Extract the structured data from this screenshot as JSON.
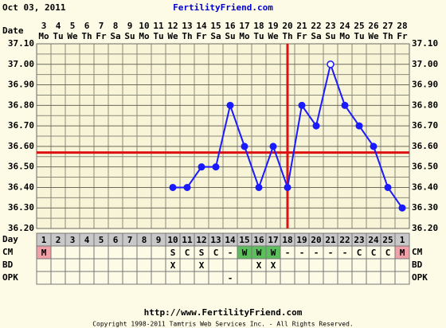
{
  "header": {
    "date": "Oct 03, 2011",
    "site": "FertilityFriend.com"
  },
  "chart_data": {
    "type": "line",
    "x_label": "Date",
    "dates": [
      "3",
      "4",
      "5",
      "6",
      "7",
      "8",
      "9",
      "10",
      "11",
      "12",
      "13",
      "14",
      "15",
      "16",
      "17",
      "18",
      "19",
      "20",
      "21",
      "22",
      "23",
      "24",
      "25",
      "26",
      "27",
      "28"
    ],
    "weekdays": [
      "Mo",
      "Tu",
      "We",
      "Th",
      "Fr",
      "Sa",
      "Su",
      "Mo",
      "Tu",
      "We",
      "Th",
      "Fr",
      "Sa",
      "Su",
      "Mo",
      "Tu",
      "We",
      "Th",
      "Fr",
      "Sa",
      "Su",
      "Mo",
      "Tu",
      "We",
      "Th",
      "Fr"
    ],
    "ylim": [
      36.2,
      37.1
    ],
    "yticks": [
      {
        "value": 37.1,
        "label": "37.10"
      },
      {
        "value": 37.0,
        "label": "37.00"
      },
      {
        "value": 36.9,
        "label": "36.90"
      },
      {
        "value": 36.8,
        "label": "36.80"
      },
      {
        "value": 36.7,
        "label": "36.70"
      },
      {
        "value": 36.6,
        "label": "36.60"
      },
      {
        "value": 36.5,
        "label": "36.50"
      },
      {
        "value": 36.4,
        "label": "36.40"
      },
      {
        "value": 36.3,
        "label": "36.30"
      },
      {
        "value": 36.2,
        "label": "36.20"
      }
    ],
    "minor_yticks": [
      37.05,
      36.95,
      36.85,
      36.75,
      36.65,
      36.55,
      36.45,
      36.35,
      36.25
    ],
    "series": [
      {
        "color": "#1a1aff",
        "values": [
          null,
          null,
          null,
          null,
          null,
          null,
          null,
          null,
          null,
          36.4,
          36.4,
          36.5,
          36.5,
          36.8,
          36.6,
          36.4,
          36.6,
          36.4,
          36.8,
          36.7,
          37.0,
          36.8,
          36.7,
          36.6,
          36.4,
          36.3
        ]
      }
    ],
    "open_marker_date": "23",
    "coverline": 36.57,
    "ovulation_date": "20",
    "line_color": "#dd1111",
    "cell_colors": {
      "M": "#f2a0a8",
      "W": "#5cbf5c"
    },
    "rows": [
      {
        "label": "Day",
        "values": [
          1,
          2,
          3,
          4,
          5,
          6,
          7,
          8,
          9,
          10,
          11,
          12,
          13,
          14,
          15,
          16,
          17,
          18,
          19,
          20,
          21,
          22,
          23,
          24,
          25,
          1
        ]
      },
      {
        "label": "CM",
        "values": [
          "M",
          null,
          null,
          null,
          null,
          null,
          null,
          null,
          null,
          "S",
          "C",
          "S",
          "C",
          "-",
          "W",
          "W",
          "W",
          "-",
          "-",
          "-",
          "-",
          "-",
          "C",
          "C",
          "C",
          "M"
        ]
      },
      {
        "label": "BD",
        "values": [
          null,
          null,
          null,
          null,
          null,
          null,
          null,
          null,
          null,
          "X",
          null,
          "X",
          null,
          null,
          null,
          "X",
          "X",
          null,
          null,
          null,
          null,
          null,
          null,
          null,
          null,
          null
        ]
      },
      {
        "label": "OPK",
        "values": [
          null,
          null,
          null,
          null,
          null,
          null,
          null,
          null,
          null,
          null,
          null,
          null,
          null,
          "-",
          null,
          null,
          null,
          null,
          null,
          null,
          null,
          null,
          null,
          null,
          null,
          null
        ]
      }
    ]
  },
  "footer": {
    "url": "http://www.FertilityFriend.com",
    "copyright": "Copyright 1998-2011 Tamtris Web Services Inc. - All Rights Reserved."
  }
}
